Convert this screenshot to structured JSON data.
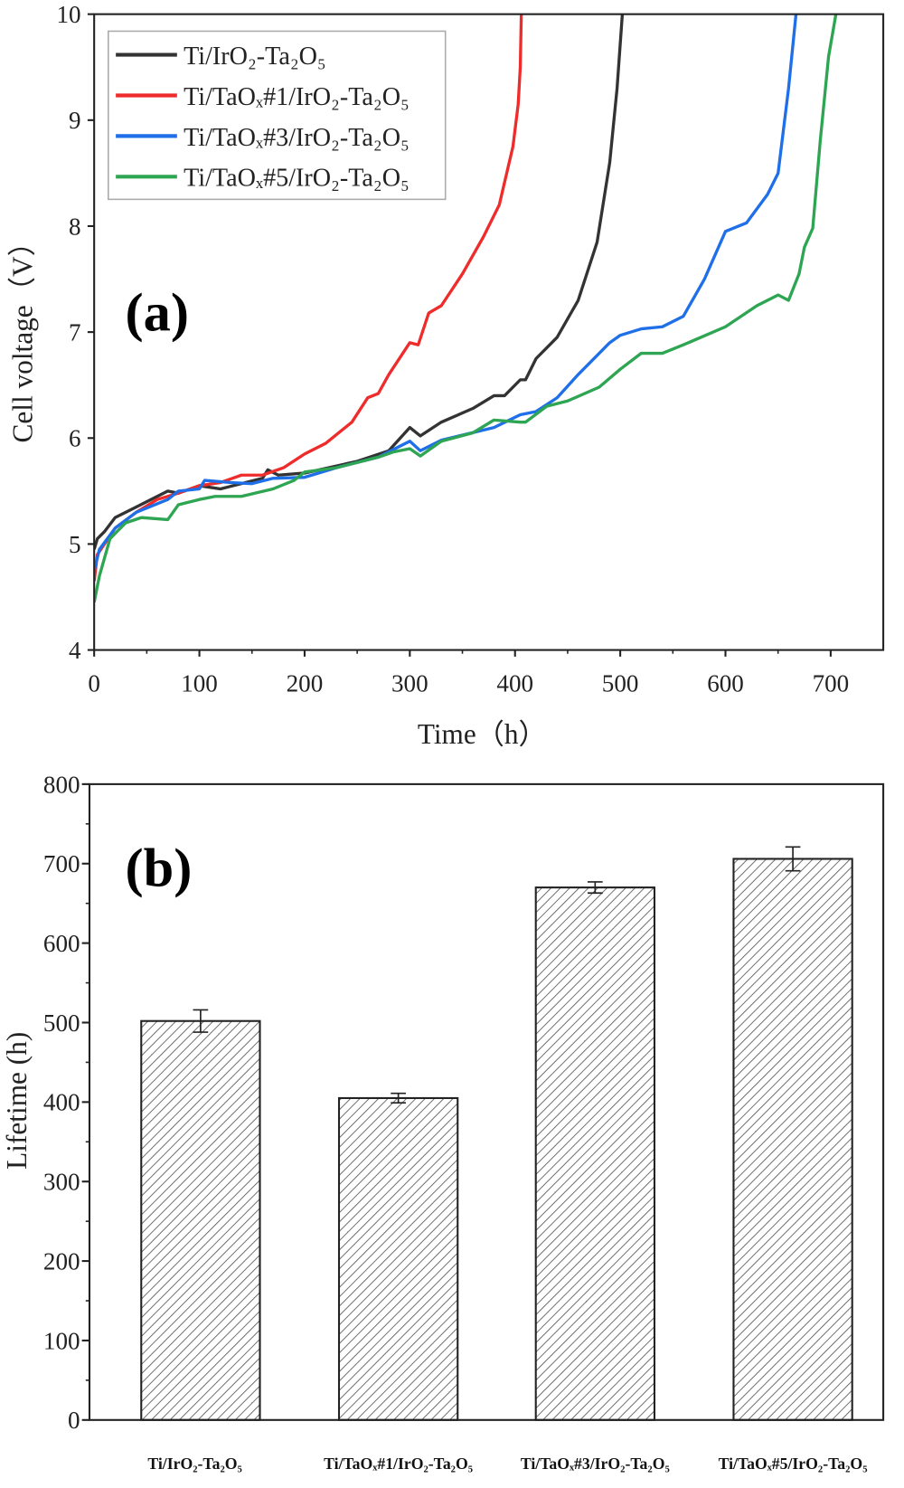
{
  "chart_data": [
    {
      "type": "line",
      "panel_label": "(a)",
      "xlabel": "Time（h）",
      "ylabel": "Cell voltage（V）",
      "xlim": [
        0,
        750
      ],
      "ylim": [
        4,
        10
      ],
      "xticks": [
        "0",
        "100",
        "200",
        "300",
        "400",
        "500",
        "600",
        "700"
      ],
      "yticks": [
        "4",
        "5",
        "6",
        "7",
        "8",
        "9",
        "10"
      ],
      "legend_placement": "top-left",
      "series": [
        {
          "name": "Ti/IrO₂-Ta₂O₅",
          "color": "#333333",
          "x": [
            0,
            3,
            10,
            20,
            40,
            60,
            70,
            80,
            100,
            120,
            140,
            160,
            165,
            175,
            200,
            250,
            280,
            300,
            310,
            330,
            360,
            380,
            390,
            405,
            410,
            420,
            440,
            460,
            478,
            490,
            497,
            502
          ],
          "y": [
            4.95,
            5.05,
            5.12,
            5.25,
            5.35,
            5.45,
            5.5,
            5.48,
            5.55,
            5.52,
            5.57,
            5.62,
            5.7,
            5.65,
            5.67,
            5.78,
            5.88,
            6.1,
            6.02,
            6.15,
            6.28,
            6.4,
            6.4,
            6.55,
            6.55,
            6.75,
            6.95,
            7.3,
            7.85,
            8.6,
            9.3,
            10
          ]
        },
        {
          "name": "Ti/TaOₓ#1/IrO₂-Ta₂O₅",
          "color": "#ee2c2c",
          "x": [
            0,
            3,
            20,
            40,
            60,
            80,
            100,
            120,
            140,
            160,
            180,
            200,
            220,
            245,
            260,
            270,
            280,
            300,
            308,
            318,
            330,
            350,
            370,
            385,
            398,
            403,
            405,
            406
          ],
          "y": [
            4.65,
            4.9,
            5.15,
            5.3,
            5.42,
            5.48,
            5.55,
            5.58,
            5.65,
            5.65,
            5.72,
            5.85,
            5.95,
            6.15,
            6.38,
            6.42,
            6.6,
            6.9,
            6.88,
            7.18,
            7.25,
            7.55,
            7.9,
            8.2,
            8.75,
            9.15,
            9.5,
            10
          ]
        },
        {
          "name": "Ti/TaOₓ#3/IrO₂-Ta₂O₅",
          "color": "#1f6fe8",
          "x": [
            0,
            5,
            20,
            40,
            70,
            80,
            100,
            105,
            130,
            150,
            170,
            200,
            230,
            270,
            300,
            310,
            330,
            380,
            405,
            420,
            440,
            460,
            490,
            500,
            520,
            540,
            560,
            580,
            600,
            620,
            640,
            650,
            660,
            667
          ],
          "y": [
            4.75,
            4.95,
            5.15,
            5.3,
            5.42,
            5.5,
            5.52,
            5.6,
            5.58,
            5.57,
            5.62,
            5.63,
            5.72,
            5.82,
            5.97,
            5.88,
            5.98,
            6.1,
            6.22,
            6.25,
            6.38,
            6.6,
            6.9,
            6.97,
            7.03,
            7.05,
            7.15,
            7.5,
            7.95,
            8.03,
            8.3,
            8.5,
            9.3,
            10
          ]
        },
        {
          "name": "Ti/TaOₓ#5/IrO₂-Ta₂O₅",
          "color": "#2ea552",
          "x": [
            0,
            5,
            15,
            30,
            45,
            70,
            80,
            100,
            115,
            140,
            170,
            190,
            200,
            230,
            270,
            285,
            300,
            310,
            330,
            360,
            380,
            405,
            410,
            430,
            450,
            480,
            500,
            520,
            540,
            560,
            600,
            630,
            650,
            660,
            670,
            675,
            683,
            690,
            698,
            705
          ],
          "y": [
            4.45,
            4.7,
            5.05,
            5.2,
            5.25,
            5.23,
            5.37,
            5.42,
            5.45,
            5.45,
            5.52,
            5.6,
            5.68,
            5.72,
            5.82,
            5.87,
            5.9,
            5.83,
            5.97,
            6.05,
            6.17,
            6.15,
            6.15,
            6.3,
            6.35,
            6.48,
            6.65,
            6.8,
            6.8,
            6.88,
            7.05,
            7.25,
            7.35,
            7.3,
            7.55,
            7.8,
            7.98,
            8.8,
            9.6,
            10
          ]
        }
      ]
    },
    {
      "type": "bar",
      "panel_label": "(b)",
      "xlabel": "",
      "ylabel": "Lifetime (h)",
      "ylabel_color": "#1a3a6e",
      "ylim": [
        0,
        800
      ],
      "yticks": [
        "0",
        "100",
        "200",
        "300",
        "400",
        "500",
        "600",
        "700",
        "800"
      ],
      "categories": [
        "Ti/IrO₂-Ta₂O₅",
        "Ti/TaOₓ#1/IrO₂-Ta₂O₅",
        "Ti/TaOₓ#3/IrO₂-Ta₂O₅",
        "Ti/TaOₓ#5/IrO₂-Ta₂O₅"
      ],
      "values": [
        502,
        405,
        670,
        706
      ],
      "errors": [
        14,
        6,
        7,
        15
      ],
      "fill": "hatched"
    }
  ]
}
